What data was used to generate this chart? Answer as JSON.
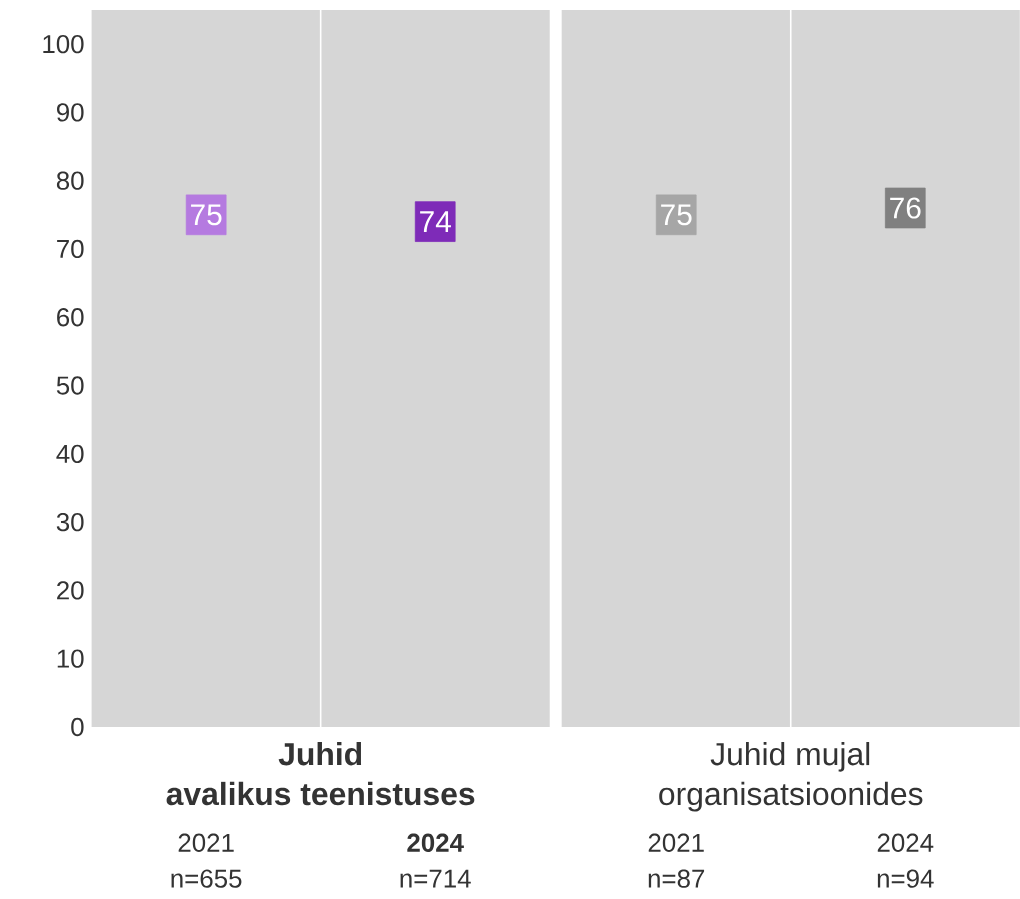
{
  "chart_data": [
    {
      "type": "scatter",
      "marker": "square",
      "data_labels": true,
      "grid": false,
      "categories": [
        "2021 n=655",
        "**2024** n=714"
      ],
      "values": [
        75,
        74
      ],
      "colors": [
        "#b57ae0",
        "#7e2bb8"
      ],
      "ylim": [
        0,
        105
      ],
      "yticks": [
        0,
        10,
        20,
        30,
        40,
        50,
        60,
        70,
        80,
        90,
        100
      ],
      "annotations": [
        "Juhid",
        "avalikus teenistuses"
      ]
    },
    {
      "type": "scatter",
      "marker": "square",
      "data_labels": true,
      "grid": false,
      "tick_labels": "x",
      "categories": [
        "2021 n=87",
        "2024 n=94"
      ],
      "values": [
        75,
        76
      ],
      "colors": [
        "#a6a6a6",
        "#808080"
      ],
      "ylim": [
        0,
        105
      ],
      "yticks": [
        0,
        10,
        20,
        30,
        40,
        50,
        60,
        70,
        80,
        90,
        100
      ],
      "annotations": [
        "Juhid mujal",
        "organisatsioonides"
      ]
    }
  ]
}
